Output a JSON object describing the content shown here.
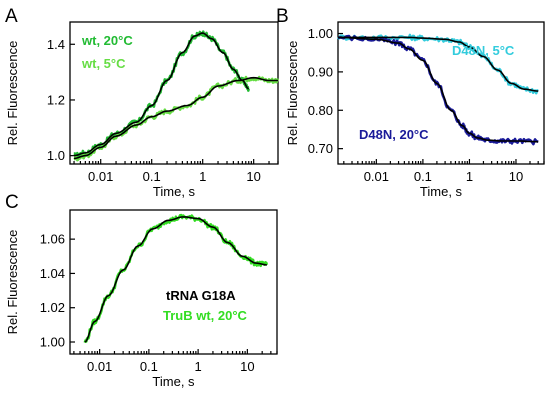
{
  "chart_data": [
    {
      "panel": "A",
      "type": "line",
      "xlabel": "Time, s",
      "ylabel": "Rel. Fluorescence",
      "x_scale": "log",
      "xlim": [
        0.0025,
        30
      ],
      "ylim": [
        0.97,
        1.48
      ],
      "x_ticks": [
        {
          "value": 0.01,
          "label": "0.01"
        },
        {
          "value": 0.1,
          "label": "0.1"
        },
        {
          "value": 1,
          "label": "1"
        },
        {
          "value": 10,
          "label": "10"
        }
      ],
      "y_ticks": [
        {
          "value": 1.0,
          "label": "1.0"
        },
        {
          "value": 1.2,
          "label": "1.2"
        },
        {
          "value": 1.4,
          "label": "1.4"
        }
      ],
      "legend": [
        {
          "label": "wt, 20°C",
          "color": "#22bb33"
        },
        {
          "label": "wt, 5°C",
          "color": "#66dd44"
        }
      ],
      "series": [
        {
          "name": "wt, 20°C",
          "color": "#22bb33",
          "x": [
            0.003,
            0.005,
            0.01,
            0.02,
            0.05,
            0.1,
            0.2,
            0.4,
            0.7,
            1,
            1.5,
            2.5,
            4,
            6,
            8
          ],
          "y": [
            1.0,
            1.01,
            1.04,
            1.08,
            1.12,
            1.18,
            1.27,
            1.37,
            1.43,
            1.44,
            1.42,
            1.37,
            1.31,
            1.27,
            1.24
          ]
        },
        {
          "name": "wt, 5°C",
          "color": "#66dd44",
          "x": [
            0.003,
            0.005,
            0.01,
            0.02,
            0.05,
            0.1,
            0.2,
            0.5,
            1,
            2,
            5,
            10,
            20,
            30
          ],
          "y": [
            0.99,
            1.0,
            1.03,
            1.07,
            1.11,
            1.14,
            1.16,
            1.18,
            1.21,
            1.25,
            1.27,
            1.28,
            1.27,
            1.27
          ]
        },
        {
          "name": "fit 20°C",
          "color": "#000000",
          "x": [
            0.003,
            0.005,
            0.01,
            0.02,
            0.05,
            0.1,
            0.2,
            0.4,
            0.7,
            1,
            1.5,
            2.5,
            4,
            6,
            8
          ],
          "y": [
            1.0,
            1.01,
            1.04,
            1.08,
            1.12,
            1.18,
            1.27,
            1.37,
            1.43,
            1.44,
            1.42,
            1.37,
            1.31,
            1.27,
            1.24
          ]
        },
        {
          "name": "fit 5°C",
          "color": "#000000",
          "x": [
            0.003,
            0.005,
            0.01,
            0.02,
            0.05,
            0.1,
            0.2,
            0.5,
            1,
            2,
            5,
            10,
            20,
            30
          ],
          "y": [
            0.99,
            1.0,
            1.03,
            1.07,
            1.11,
            1.14,
            1.16,
            1.18,
            1.21,
            1.25,
            1.27,
            1.28,
            1.27,
            1.27
          ]
        }
      ]
    },
    {
      "panel": "B",
      "type": "line",
      "xlabel": "Time, s",
      "ylabel": "Rel. Fluorescence",
      "x_scale": "log",
      "xlim": [
        0.0015,
        40
      ],
      "ylim": [
        0.66,
        1.03
      ],
      "x_ticks": [
        {
          "value": 0.01,
          "label": "0.01"
        },
        {
          "value": 0.1,
          "label": "0.1"
        },
        {
          "value": 1,
          "label": "1"
        },
        {
          "value": 10,
          "label": "10"
        }
      ],
      "y_ticks": [
        {
          "value": 0.7,
          "label": "0.70"
        },
        {
          "value": 0.8,
          "label": "0.80"
        },
        {
          "value": 0.9,
          "label": "0.90"
        },
        {
          "value": 1.0,
          "label": "1.00"
        }
      ],
      "legend": [
        {
          "label": "D48N, 5°C",
          "color": "#33ccdd"
        },
        {
          "label": "D48N, 20°C",
          "color": "#1a1a99"
        }
      ],
      "series": [
        {
          "name": "D48N, 5°C",
          "color": "#33ccdd",
          "x": [
            0.0015,
            0.01,
            0.05,
            0.1,
            0.3,
            0.6,
            1,
            2,
            4,
            8,
            15,
            30
          ],
          "y": [
            0.99,
            0.99,
            0.99,
            0.988,
            0.985,
            0.978,
            0.965,
            0.94,
            0.905,
            0.87,
            0.855,
            0.85
          ]
        },
        {
          "name": "D48N, 20°C",
          "color": "#1a1a99",
          "x": [
            0.0015,
            0.01,
            0.03,
            0.05,
            0.1,
            0.2,
            0.4,
            0.7,
            1,
            1.5,
            2.5,
            5,
            10,
            30
          ],
          "y": [
            0.99,
            0.985,
            0.975,
            0.96,
            0.93,
            0.87,
            0.8,
            0.76,
            0.74,
            0.728,
            0.722,
            0.72,
            0.72,
            0.718
          ]
        },
        {
          "name": "fit 5°C",
          "color": "#000000",
          "x": [
            0.0015,
            0.01,
            0.05,
            0.1,
            0.3,
            0.6,
            1,
            2,
            4,
            8,
            15,
            30
          ],
          "y": [
            0.99,
            0.99,
            0.99,
            0.988,
            0.985,
            0.978,
            0.965,
            0.94,
            0.905,
            0.87,
            0.855,
            0.85
          ]
        },
        {
          "name": "fit 20°C",
          "color": "#000000",
          "x": [
            0.0015,
            0.01,
            0.03,
            0.05,
            0.1,
            0.2,
            0.4,
            0.7,
            1,
            1.5,
            2.5,
            5,
            10,
            30
          ],
          "y": [
            0.99,
            0.985,
            0.975,
            0.96,
            0.93,
            0.87,
            0.8,
            0.76,
            0.74,
            0.728,
            0.722,
            0.72,
            0.72,
            0.718
          ]
        }
      ]
    },
    {
      "panel": "C",
      "type": "line",
      "xlabel": "Time, s",
      "ylabel": "Rel. Fluorescence",
      "x_scale": "log",
      "xlim": [
        0.0025,
        40
      ],
      "ylim": [
        0.993,
        1.077
      ],
      "x_ticks": [
        {
          "value": 0.01,
          "label": "0.01"
        },
        {
          "value": 0.1,
          "label": "0.1"
        },
        {
          "value": 1,
          "label": "1"
        },
        {
          "value": 10,
          "label": "10"
        }
      ],
      "y_ticks": [
        {
          "value": 1.0,
          "label": "1.00"
        },
        {
          "value": 1.02,
          "label": "1.02"
        },
        {
          "value": 1.04,
          "label": "1.04"
        },
        {
          "value": 1.06,
          "label": "1.06"
        }
      ],
      "legend": [
        {
          "label": "tRNA G18A",
          "color": "#000000"
        },
        {
          "label": "TruB wt, 20°C",
          "color": "#33dd22"
        }
      ],
      "series": [
        {
          "name": "TruB wt, 20°C",
          "color": "#33dd22",
          "x": [
            0.005,
            0.008,
            0.015,
            0.03,
            0.06,
            0.12,
            0.25,
            0.5,
            1,
            2,
            4,
            8,
            15,
            25
          ],
          "y": [
            1.0,
            1.012,
            1.027,
            1.042,
            1.056,
            1.066,
            1.071,
            1.073,
            1.072,
            1.067,
            1.058,
            1.05,
            1.046,
            1.045
          ]
        },
        {
          "name": "fit",
          "color": "#000000",
          "x": [
            0.005,
            0.008,
            0.015,
            0.03,
            0.06,
            0.12,
            0.25,
            0.5,
            1,
            2,
            4,
            8,
            15,
            25
          ],
          "y": [
            1.0,
            1.012,
            1.027,
            1.042,
            1.056,
            1.066,
            1.071,
            1.073,
            1.072,
            1.067,
            1.058,
            1.05,
            1.046,
            1.045
          ]
        }
      ]
    }
  ]
}
